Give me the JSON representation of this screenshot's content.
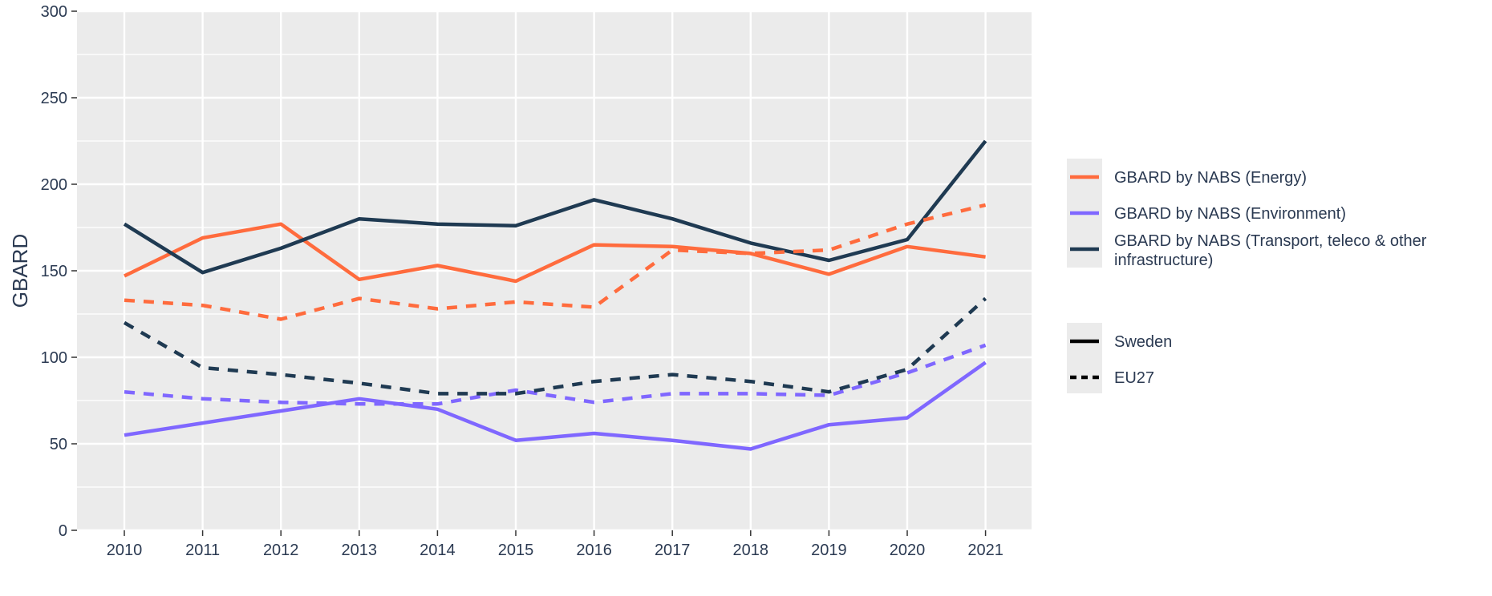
{
  "chart_data": {
    "type": "line",
    "title": "",
    "xlabel": "",
    "ylabel": "GBARD",
    "x": [
      "2010",
      "2011",
      "2012",
      "2013",
      "2014",
      "2015",
      "2016",
      "2017",
      "2018",
      "2019",
      "2020",
      "2021"
    ],
    "ylim": [
      0,
      300
    ],
    "yticks": [
      0,
      50,
      100,
      150,
      200,
      250,
      300
    ],
    "grid": true,
    "legend_position": "right",
    "series": [
      {
        "name": "GBARD by NABS (Energy)",
        "region": "Sweden",
        "color": "#ff6b3d",
        "linestyle": "solid",
        "values": [
          147,
          169,
          177,
          145,
          153,
          144,
          165,
          164,
          160,
          148,
          164,
          158
        ]
      },
      {
        "name": "GBARD by NABS (Environment)",
        "region": "Sweden",
        "color": "#7f67ff",
        "linestyle": "solid",
        "values": [
          55,
          62,
          69,
          76,
          70,
          52,
          56,
          52,
          47,
          61,
          65,
          97
        ]
      },
      {
        "name": "GBARD by NABS (Transport, teleco & other infrastructure)",
        "region": "Sweden",
        "color": "#1f3a52",
        "linestyle": "solid",
        "values": [
          177,
          149,
          163,
          180,
          177,
          176,
          191,
          180,
          166,
          156,
          168,
          225
        ]
      },
      {
        "name": "GBARD by NABS (Energy)",
        "region": "EU27",
        "color": "#ff6b3d",
        "linestyle": "dashed",
        "values": [
          133,
          130,
          122,
          134,
          128,
          132,
          129,
          162,
          160,
          162,
          177,
          188
        ]
      },
      {
        "name": "GBARD by NABS (Environment)",
        "region": "EU27",
        "color": "#7f67ff",
        "linestyle": "dashed",
        "values": [
          80,
          76,
          74,
          73,
          73,
          81,
          74,
          79,
          79,
          78,
          91,
          107
        ]
      },
      {
        "name": "GBARD by NABS (Transport, teleco & other infrastructure)",
        "region": "EU27",
        "color": "#1f3a52",
        "linestyle": "dashed",
        "values": [
          120,
          94,
          90,
          85,
          79,
          79,
          86,
          90,
          86,
          80,
          93,
          134
        ]
      }
    ],
    "legend": {
      "color_items": [
        {
          "label_line1": "GBARD by NABS (Energy)",
          "label_line2": "",
          "color": "#ff6b3d"
        },
        {
          "label_line1": "GBARD by NABS (Environment)",
          "label_line2": "",
          "color": "#7f67ff"
        },
        {
          "label_line1": "GBARD by NABS (Transport, teleco & other",
          "label_line2": "infrastructure)",
          "color": "#1f3a52"
        }
      ],
      "linetype_items": [
        {
          "label": "Sweden",
          "linestyle": "solid"
        },
        {
          "label": "EU27",
          "linestyle": "dashed"
        }
      ]
    },
    "panel_color": "#ebebeb"
  }
}
